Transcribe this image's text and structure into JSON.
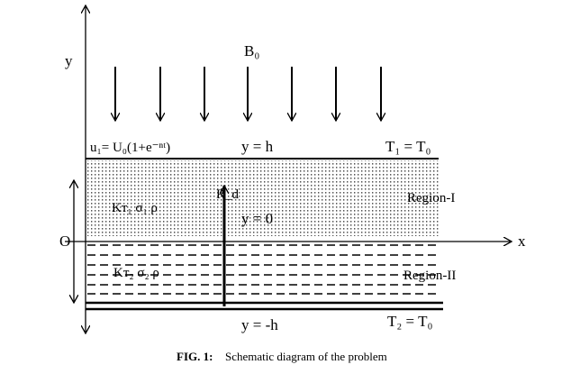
{
  "axes": {
    "y": "y",
    "x": "x",
    "origin": "O"
  },
  "field": "B₀",
  "top_plate": {
    "velocity": "u₁= U₀(1+e⁻ⁿᵗ)",
    "position": "y = h",
    "temperature": "T₁ = T₀"
  },
  "region_1": {
    "name": "Region-I",
    "properties": "Kᴛ₁   σ₁    ρ"
  },
  "radiation": "R_d",
  "midline": "y = 0",
  "region_2": {
    "name": "Region-II",
    "properties": "Kᴛ₂   σ₂    ρ"
  },
  "bottom_plate": {
    "position": "y = -h",
    "temperature": "T₂ = T₀"
  },
  "caption": {
    "label": "FIG.  1:",
    "text": "Schematic diagram of the problem"
  }
}
